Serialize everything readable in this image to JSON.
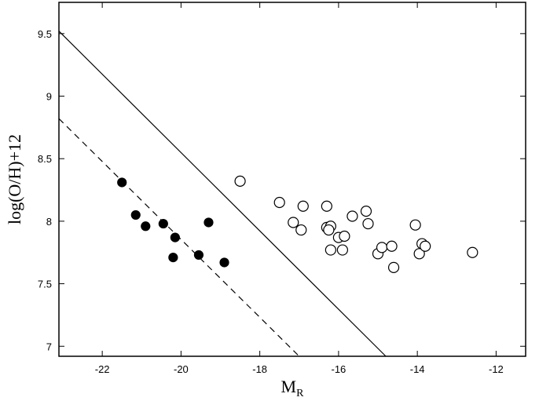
{
  "chart_data": {
    "type": "scatter",
    "title": "",
    "xlabel": {
      "main": "M",
      "subscript": "R"
    },
    "ylabel": "log(O/H)+12",
    "xlim": [
      -23.1,
      -11.25
    ],
    "ylim": [
      6.92,
      9.75
    ],
    "grid": false,
    "x_ticks": [
      -22,
      -20,
      -18,
      -16,
      -14,
      -12
    ],
    "y_ticks": [
      7,
      7.5,
      8,
      8.5,
      9,
      9.5
    ],
    "x_tick_labels": [
      "-22",
      "-20",
      "-18",
      "-16",
      "-14",
      "-12"
    ],
    "y_tick_labels": [
      "7",
      "7.5",
      "8",
      "8.5",
      "9",
      "9.5"
    ],
    "series": [
      {
        "marker": "filled-circle",
        "points": [
          {
            "x": -21.5,
            "y": 8.31
          },
          {
            "x": -21.15,
            "y": 8.05
          },
          {
            "x": -20.9,
            "y": 7.96
          },
          {
            "x": -20.45,
            "y": 7.98
          },
          {
            "x": -20.15,
            "y": 7.87
          },
          {
            "x": -20.2,
            "y": 7.71
          },
          {
            "x": -19.55,
            "y": 7.73
          },
          {
            "x": -19.3,
            "y": 7.99
          },
          {
            "x": -18.9,
            "y": 7.67
          }
        ]
      },
      {
        "marker": "open-circle",
        "points": [
          {
            "x": -18.5,
            "y": 8.32
          },
          {
            "x": -17.5,
            "y": 8.15
          },
          {
            "x": -17.15,
            "y": 7.99
          },
          {
            "x": -16.9,
            "y": 8.12
          },
          {
            "x": -16.95,
            "y": 7.93
          },
          {
            "x": -16.3,
            "y": 8.12
          },
          {
            "x": -16.3,
            "y": 7.95
          },
          {
            "x": -16.2,
            "y": 7.96
          },
          {
            "x": -16.25,
            "y": 7.93
          },
          {
            "x": -16.2,
            "y": 7.77
          },
          {
            "x": -16.0,
            "y": 7.87
          },
          {
            "x": -15.85,
            "y": 7.88
          },
          {
            "x": -15.9,
            "y": 7.77
          },
          {
            "x": -15.65,
            "y": 8.04
          },
          {
            "x": -15.3,
            "y": 8.08
          },
          {
            "x": -15.25,
            "y": 7.98
          },
          {
            "x": -15.0,
            "y": 7.74
          },
          {
            "x": -14.9,
            "y": 7.79
          },
          {
            "x": -14.65,
            "y": 7.8
          },
          {
            "x": -14.6,
            "y": 7.63
          },
          {
            "x": -14.05,
            "y": 7.97
          },
          {
            "x": -13.95,
            "y": 7.74
          },
          {
            "x": -13.88,
            "y": 7.82
          },
          {
            "x": -13.8,
            "y": 7.8
          },
          {
            "x": -12.6,
            "y": 7.75
          }
        ]
      }
    ],
    "lines": [
      {
        "style": "solid",
        "x": [
          -23.1,
          -14.8
        ],
        "y": [
          9.52,
          6.92
        ]
      },
      {
        "style": "dashed",
        "x": [
          -23.1,
          -17.0
        ],
        "y": [
          8.82,
          6.92
        ]
      }
    ]
  }
}
